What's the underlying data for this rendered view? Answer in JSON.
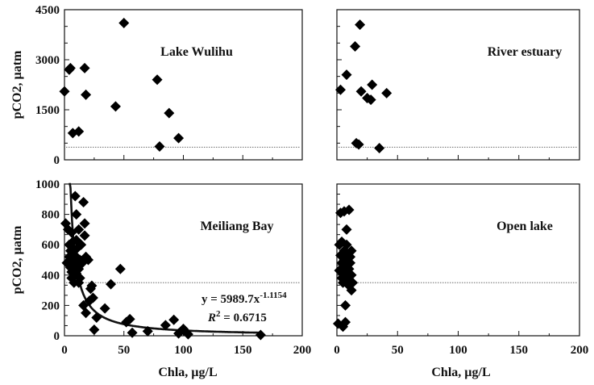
{
  "chart_data": [
    {
      "type": "scatter",
      "title": "Lake Wulihu",
      "xlabel": "",
      "ylabel": "pCO2, µatm",
      "xlim": [
        0,
        200
      ],
      "ylim": [
        0,
        4500
      ],
      "yticks": [
        0,
        1500,
        3000,
        4500
      ],
      "reference_y": 380,
      "points": [
        [
          0,
          2050
        ],
        [
          4,
          2700
        ],
        [
          5,
          2750
        ],
        [
          7,
          800
        ],
        [
          12,
          850
        ],
        [
          17,
          2750
        ],
        [
          18,
          1950
        ],
        [
          43,
          1600
        ],
        [
          50,
          4100
        ],
        [
          78,
          2400
        ],
        [
          80,
          400
        ],
        [
          88,
          1400
        ],
        [
          96,
          650
        ]
      ]
    },
    {
      "type": "scatter",
      "title": "River  estuary",
      "xlabel": "",
      "ylabel": "",
      "xlim": [
        0,
        200
      ],
      "ylim": [
        0,
        4500
      ],
      "reference_y": 380,
      "points": [
        [
          3,
          2100
        ],
        [
          8,
          2550
        ],
        [
          15,
          3400
        ],
        [
          16,
          500
        ],
        [
          18,
          460
        ],
        [
          19,
          4050
        ],
        [
          20,
          2050
        ],
        [
          25,
          1850
        ],
        [
          28,
          1800
        ],
        [
          29,
          2250
        ],
        [
          35,
          350
        ],
        [
          41,
          2000
        ]
      ]
    },
    {
      "type": "scatter",
      "title": "Meiliang Bay",
      "xlabel": "Chla, µg/L",
      "ylabel": "pCO2, µatm",
      "xlim": [
        0,
        200
      ],
      "ylim": [
        0,
        1000
      ],
      "xticks": [
        0,
        50,
        100,
        150,
        200
      ],
      "yticks": [
        0,
        200,
        400,
        600,
        800,
        1000
      ],
      "reference_y": 350,
      "annotation": {
        "equation": "y = 5989.7x",
        "exponent": "-1.1154",
        "r2_label": "R",
        "r2_value": " = 0.6715"
      },
      "fit": {
        "a": 5989.7,
        "b": -1.1154,
        "x_start": 3.6,
        "x_end": 165
      },
      "points": [
        [
          1,
          740
        ],
        [
          2,
          480
        ],
        [
          3,
          700
        ],
        [
          4,
          520
        ],
        [
          4,
          600
        ],
        [
          5,
          450
        ],
        [
          5,
          500
        ],
        [
          5,
          560
        ],
        [
          6,
          680
        ],
        [
          6,
          420
        ],
        [
          6,
          380
        ],
        [
          7,
          530
        ],
        [
          7,
          480
        ],
        [
          7,
          620
        ],
        [
          8,
          350
        ],
        [
          8,
          450
        ],
        [
          8,
          500
        ],
        [
          8,
          570
        ],
        [
          9,
          920
        ],
        [
          9,
          400
        ],
        [
          10,
          800
        ],
        [
          10,
          630
        ],
        [
          10,
          520
        ],
        [
          10,
          410
        ],
        [
          11,
          470
        ],
        [
          11,
          580
        ],
        [
          12,
          700
        ],
        [
          12,
          350
        ],
        [
          12,
          440
        ],
        [
          13,
          500
        ],
        [
          13,
          380
        ],
        [
          14,
          600
        ],
        [
          15,
          480
        ],
        [
          16,
          200
        ],
        [
          16,
          880
        ],
        [
          17,
          740
        ],
        [
          17,
          660
        ],
        [
          18,
          520
        ],
        [
          18,
          150
        ],
        [
          20,
          500
        ],
        [
          21,
          230
        ],
        [
          22,
          310
        ],
        [
          23,
          330
        ],
        [
          24,
          250
        ],
        [
          25,
          40
        ],
        [
          27,
          120
        ],
        [
          34,
          180
        ],
        [
          39,
          340
        ],
        [
          47,
          440
        ],
        [
          52,
          90
        ],
        [
          55,
          110
        ],
        [
          57,
          20
        ],
        [
          70,
          30
        ],
        [
          85,
          70
        ],
        [
          92,
          105
        ],
        [
          96,
          15
        ],
        [
          100,
          45
        ],
        [
          104,
          10
        ],
        [
          165,
          5
        ]
      ]
    },
    {
      "type": "scatter",
      "title": "Open lake",
      "xlabel": "Chla, µg/L",
      "ylabel": "",
      "xlim": [
        0,
        200
      ],
      "ylim": [
        0,
        1000
      ],
      "xticks": [
        0,
        50,
        100,
        150,
        200
      ],
      "reference_y": 350,
      "points": [
        [
          1,
          80
        ],
        [
          2,
          430
        ],
        [
          2,
          600
        ],
        [
          3,
          530
        ],
        [
          3,
          810
        ],
        [
          4,
          620
        ],
        [
          4,
          480
        ],
        [
          4,
          380
        ],
        [
          5,
          440
        ],
        [
          5,
          350
        ],
        [
          5,
          60
        ],
        [
          6,
          820
        ],
        [
          6,
          560
        ],
        [
          6,
          500
        ],
        [
          7,
          420
        ],
        [
          7,
          200
        ],
        [
          7,
          90
        ],
        [
          8,
          700
        ],
        [
          8,
          600
        ],
        [
          8,
          460
        ],
        [
          9,
          540
        ],
        [
          9,
          380
        ],
        [
          10,
          440
        ],
        [
          10,
          330
        ],
        [
          10,
          830
        ],
        [
          11,
          480
        ],
        [
          11,
          520
        ],
        [
          12,
          560
        ],
        [
          12,
          400
        ],
        [
          12,
          300
        ],
        [
          13,
          350
        ]
      ]
    }
  ]
}
